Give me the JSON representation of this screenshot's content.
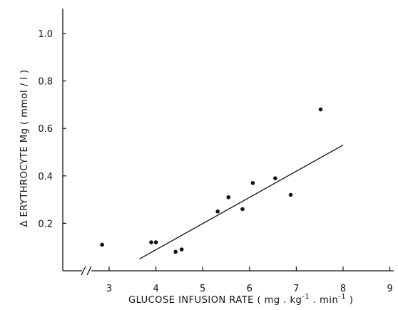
{
  "chart_data": {
    "type": "scatter",
    "title": "",
    "xlabel": "GLUCOSE INFUSION RATE ( mg . kg",
    "xlabel_sup1": "-1",
    "xlabel_mid": " . min",
    "xlabel_sup2": "-1",
    "xlabel_end": " )",
    "ylabel": "Δ ERYTHROCYTE Mg ( mmol / l )",
    "xlim": [
      2.1,
      9
    ],
    "ylim": [
      0,
      1.1
    ],
    "x_axis_break": true,
    "grid": false,
    "legend": "none",
    "xticks": [
      3,
      4,
      5,
      6,
      7,
      8,
      9
    ],
    "xtick_labels": [
      "3",
      "4",
      "5",
      "6",
      "7",
      "8",
      "9"
    ],
    "yticks": [
      0.2,
      0.4,
      0.6,
      0.8,
      1.0
    ],
    "ytick_labels": [
      "0.2",
      "0.4",
      "0.6",
      "0.8",
      "1.0"
    ],
    "points": [
      {
        "x": 2.85,
        "y": 0.11
      },
      {
        "x": 3.9,
        "y": 0.12
      },
      {
        "x": 4.0,
        "y": 0.12
      },
      {
        "x": 4.42,
        "y": 0.08
      },
      {
        "x": 4.55,
        "y": 0.09
      },
      {
        "x": 5.32,
        "y": 0.25
      },
      {
        "x": 5.55,
        "y": 0.31
      },
      {
        "x": 5.85,
        "y": 0.26
      },
      {
        "x": 6.07,
        "y": 0.37
      },
      {
        "x": 6.55,
        "y": 0.39
      },
      {
        "x": 6.88,
        "y": 0.32
      },
      {
        "x": 7.52,
        "y": 0.68
      }
    ],
    "regression_line": {
      "x1": 3.65,
      "y1": 0.05,
      "x2": 8.0,
      "y2": 0.53
    }
  }
}
